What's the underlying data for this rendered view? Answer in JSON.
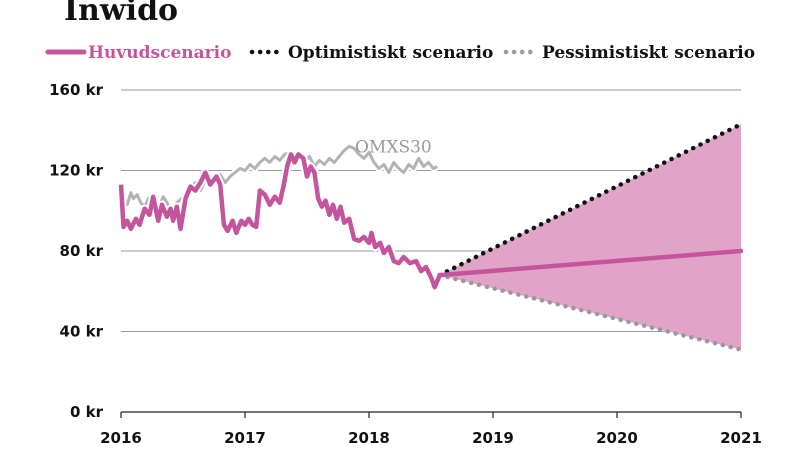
{
  "chart_data": {
    "type": "line",
    "title": "Inwido",
    "legend": {
      "placement": "top",
      "entries": [
        {
          "label": "Huvudscenario",
          "style": "solid",
          "color": "#c4559c"
        },
        {
          "label": "Optimistiskt scenario",
          "style": "dotted",
          "color": "#111111"
        },
        {
          "label": "Pessimistiskt scenario",
          "style": "dotted",
          "color": "#999999"
        }
      ]
    },
    "xlim": [
      2016,
      2021
    ],
    "ylim": [
      0,
      160
    ],
    "x_ticks": [
      {
        "value": 2016,
        "label": "2016"
      },
      {
        "value": 2017,
        "label": "2017"
      },
      {
        "value": 2018,
        "label": "2018"
      },
      {
        "value": 2019,
        "label": "2019"
      },
      {
        "value": 2020,
        "label": "2020"
      },
      {
        "value": 2021,
        "label": "2021"
      }
    ],
    "y_ticks": [
      {
        "value": 0,
        "label": "0 kr"
      },
      {
        "value": 40,
        "label": "40 kr"
      },
      {
        "value": 80,
        "label": "80 kr"
      },
      {
        "value": 120,
        "label": "120 kr"
      },
      {
        "value": 160,
        "label": "160 kr"
      }
    ],
    "grid": "horizontal",
    "colors": {
      "main": "#c4559c",
      "band": "#e2a3c9",
      "optimistic": "#111111",
      "pessimistic": "#999999",
      "omx": "#b3b3b3",
      "grid": "#9a9a9a"
    },
    "series": [
      {
        "name": "Huvudscenario",
        "kind": "history",
        "points": [
          [
            2016.0,
            113
          ],
          [
            2016.02,
            92
          ],
          [
            2016.05,
            95
          ],
          [
            2016.08,
            91
          ],
          [
            2016.12,
            96
          ],
          [
            2016.15,
            93
          ],
          [
            2016.19,
            101
          ],
          [
            2016.23,
            98
          ],
          [
            2016.26,
            107
          ],
          [
            2016.3,
            95
          ],
          [
            2016.33,
            103
          ],
          [
            2016.37,
            97
          ],
          [
            2016.4,
            101
          ],
          [
            2016.42,
            95
          ],
          [
            2016.45,
            102
          ],
          [
            2016.48,
            91
          ],
          [
            2016.52,
            106
          ],
          [
            2016.56,
            112
          ],
          [
            2016.6,
            110
          ],
          [
            2016.64,
            114
          ],
          [
            2016.68,
            119
          ],
          [
            2016.72,
            113
          ],
          [
            2016.77,
            117
          ],
          [
            2016.8,
            113
          ],
          [
            2016.83,
            93
          ],
          [
            2016.86,
            90
          ],
          [
            2016.9,
            95
          ],
          [
            2016.93,
            89
          ],
          [
            2016.97,
            95
          ],
          [
            2017.0,
            93
          ],
          [
            2017.03,
            96
          ],
          [
            2017.06,
            93
          ],
          [
            2017.09,
            92
          ],
          [
            2017.12,
            110
          ],
          [
            2017.16,
            108
          ],
          [
            2017.2,
            103
          ],
          [
            2017.24,
            107
          ],
          [
            2017.28,
            104
          ],
          [
            2017.31,
            112
          ],
          [
            2017.34,
            122
          ],
          [
            2017.37,
            128
          ],
          [
            2017.4,
            124
          ],
          [
            2017.43,
            128
          ],
          [
            2017.47,
            126
          ],
          [
            2017.5,
            117
          ],
          [
            2017.53,
            122
          ],
          [
            2017.56,
            119
          ],
          [
            2017.59,
            106
          ],
          [
            2017.62,
            102
          ],
          [
            2017.65,
            105
          ],
          [
            2017.68,
            98
          ],
          [
            2017.71,
            103
          ],
          [
            2017.74,
            96
          ],
          [
            2017.77,
            102
          ],
          [
            2017.8,
            94
          ],
          [
            2017.84,
            96
          ],
          [
            2017.88,
            86
          ],
          [
            2017.92,
            85
          ],
          [
            2017.96,
            87
          ],
          [
            2018.0,
            84
          ],
          [
            2018.02,
            89
          ],
          [
            2018.05,
            82
          ],
          [
            2018.09,
            84
          ],
          [
            2018.12,
            79
          ],
          [
            2018.16,
            82
          ],
          [
            2018.2,
            75
          ],
          [
            2018.24,
            74
          ],
          [
            2018.28,
            77
          ],
          [
            2018.33,
            74
          ],
          [
            2018.38,
            75
          ],
          [
            2018.42,
            70
          ],
          [
            2018.46,
            72
          ],
          [
            2018.5,
            67
          ],
          [
            2018.53,
            62
          ],
          [
            2018.57,
            68
          ]
        ]
      },
      {
        "name": "Huvudscenario",
        "kind": "projection",
        "points": [
          [
            2018.57,
            68
          ],
          [
            2021.0,
            80
          ]
        ]
      },
      {
        "name": "Optimistiskt scenario",
        "kind": "projection",
        "points": [
          [
            2018.57,
            68
          ],
          [
            2021.0,
            143
          ]
        ]
      },
      {
        "name": "Pessimistiskt scenario",
        "kind": "projection",
        "points": [
          [
            2018.57,
            68
          ],
          [
            2021.0,
            31
          ]
        ]
      },
      {
        "name": "OMXS30",
        "kind": "benchmark",
        "points": [
          [
            2016.0,
            110
          ],
          [
            2016.02,
            104
          ],
          [
            2016.05,
            103
          ],
          [
            2016.08,
            109
          ],
          [
            2016.1,
            106
          ],
          [
            2016.13,
            108
          ],
          [
            2016.16,
            104
          ],
          [
            2016.19,
            102
          ],
          [
            2016.22,
            106
          ],
          [
            2016.26,
            104
          ],
          [
            2016.3,
            101
          ],
          [
            2016.34,
            107
          ],
          [
            2016.38,
            103
          ],
          [
            2016.41,
            99
          ],
          [
            2016.45,
            104
          ],
          [
            2016.49,
            106
          ],
          [
            2016.52,
            109
          ],
          [
            2016.56,
            112
          ],
          [
            2016.6,
            114
          ],
          [
            2016.64,
            110
          ],
          [
            2016.68,
            115
          ],
          [
            2016.72,
            113
          ],
          [
            2016.76,
            116
          ],
          [
            2016.8,
            118
          ],
          [
            2016.84,
            114
          ],
          [
            2016.88,
            117
          ],
          [
            2016.92,
            119
          ],
          [
            2016.96,
            121
          ],
          [
            2017.0,
            120
          ],
          [
            2017.04,
            123
          ],
          [
            2017.08,
            121
          ],
          [
            2017.12,
            124
          ],
          [
            2017.16,
            126
          ],
          [
            2017.2,
            124
          ],
          [
            2017.24,
            127
          ],
          [
            2017.28,
            125
          ],
          [
            2017.32,
            128
          ],
          [
            2017.36,
            129
          ],
          [
            2017.4,
            126
          ],
          [
            2017.44,
            128
          ],
          [
            2017.48,
            124
          ],
          [
            2017.52,
            127
          ],
          [
            2017.56,
            122
          ],
          [
            2017.6,
            125
          ],
          [
            2017.64,
            123
          ],
          [
            2017.68,
            126
          ],
          [
            2017.72,
            124
          ],
          [
            2017.76,
            127
          ],
          [
            2017.8,
            130
          ],
          [
            2017.84,
            132
          ],
          [
            2017.88,
            131
          ],
          [
            2017.92,
            128
          ],
          [
            2017.96,
            126
          ],
          [
            2018.0,
            129
          ],
          [
            2018.04,
            124
          ],
          [
            2018.08,
            121
          ],
          [
            2018.12,
            123
          ],
          [
            2018.16,
            119
          ],
          [
            2018.2,
            124
          ],
          [
            2018.24,
            121
          ],
          [
            2018.28,
            119
          ],
          [
            2018.32,
            123
          ],
          [
            2018.36,
            121
          ],
          [
            2018.4,
            126
          ],
          [
            2018.44,
            122
          ],
          [
            2018.48,
            124
          ],
          [
            2018.52,
            121
          ],
          [
            2018.55,
            122
          ]
        ]
      }
    ],
    "annotations": [
      {
        "text": "OMXS30",
        "x": 2018.0,
        "y": 132
      }
    ]
  }
}
